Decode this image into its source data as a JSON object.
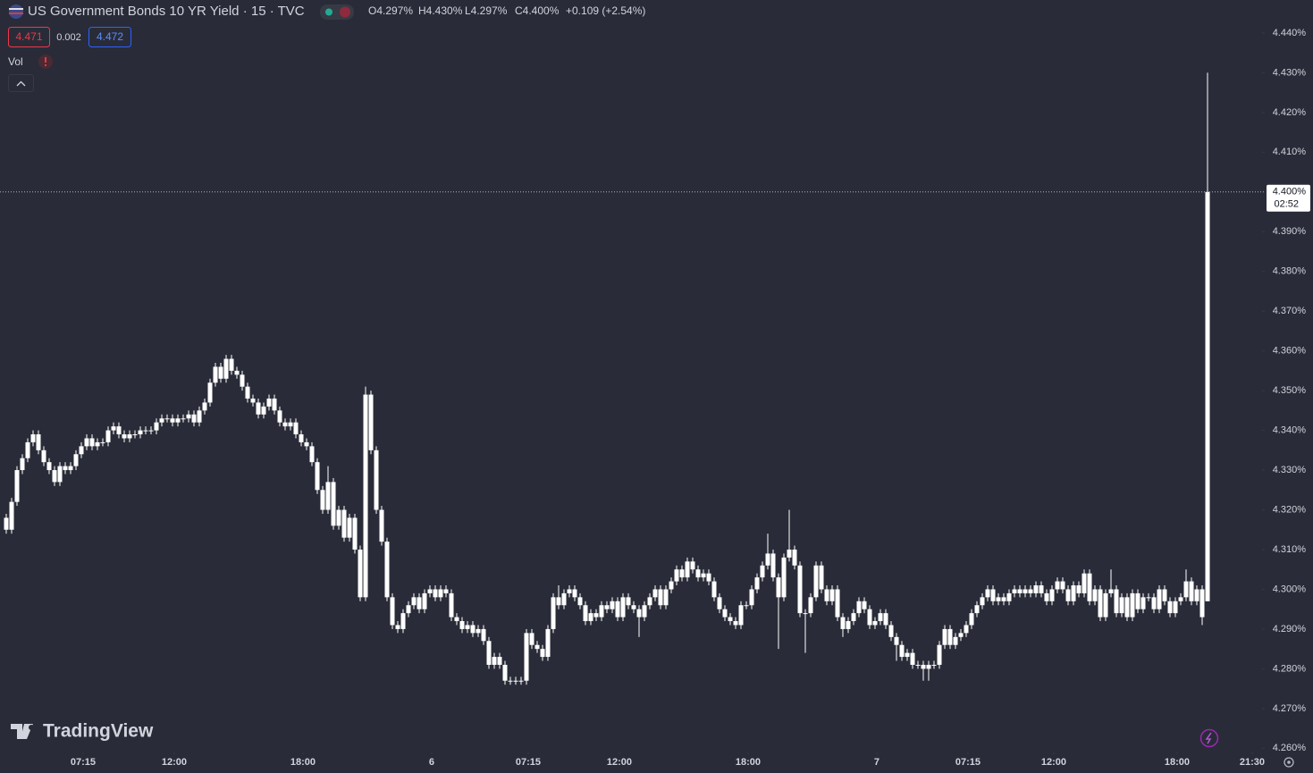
{
  "header": {
    "title": "US Government Bonds 10 YR Yield · 15 · TVC",
    "ohlc": [
      "O4.297%",
      "H4.430%",
      "L4.297%",
      "C4.400%"
    ],
    "change": "+0.109 (+2.54%)",
    "bid": "4.471",
    "spread": "0.002",
    "ask": "4.472",
    "volume_label": "Vol"
  },
  "watermark": "TradingView",
  "chart_data": {
    "type": "candlestick",
    "color": "#ffffff",
    "xlim": [
      -1.167,
      233.833
    ],
    "ylim": [
      4.2594,
      4.4483
    ],
    "xticks": [
      {
        "value": 14.33,
        "label": "07:15"
      },
      {
        "value": 31.33,
        "label": "12:00"
      },
      {
        "value": 55.33,
        "label": "18:00"
      },
      {
        "value": 79.33,
        "label": "6"
      },
      {
        "value": 97.33,
        "label": "07:15"
      },
      {
        "value": 114.33,
        "label": "12:00"
      },
      {
        "value": 138.33,
        "label": "18:00"
      },
      {
        "value": 162.33,
        "label": "7"
      },
      {
        "value": 179.33,
        "label": "07:15"
      },
      {
        "value": 195.33,
        "label": "12:00"
      },
      {
        "value": 218.33,
        "label": "18:00"
      },
      {
        "value": 232.33,
        "label": "21:30"
      }
    ],
    "yticks": [
      {
        "value": 4.44,
        "label": "4.440%"
      },
      {
        "value": 4.43,
        "label": "4.430%"
      },
      {
        "value": 4.42,
        "label": "4.420%"
      },
      {
        "value": 4.41,
        "label": "4.410%"
      },
      {
        "value": 4.39,
        "label": "4.390%"
      },
      {
        "value": 4.38,
        "label": "4.380%"
      },
      {
        "value": 4.37,
        "label": "4.370%"
      },
      {
        "value": 4.36,
        "label": "4.360%"
      },
      {
        "value": 4.35,
        "label": "4.350%"
      },
      {
        "value": 4.34,
        "label": "4.340%"
      },
      {
        "value": 4.33,
        "label": "4.330%"
      },
      {
        "value": 4.32,
        "label": "4.320%"
      },
      {
        "value": 4.31,
        "label": "4.310%"
      },
      {
        "value": 4.3,
        "label": "4.300%"
      },
      {
        "value": 4.29,
        "label": "4.290%"
      },
      {
        "value": 4.28,
        "label": "4.280%"
      },
      {
        "value": 4.27,
        "label": "4.270%"
      },
      {
        "value": 4.26,
        "label": "4.260%"
      }
    ],
    "last_price": {
      "value": 4.4,
      "label": "4.400%"
    },
    "countdown": "02:52",
    "open": [
      4.318,
      4.315,
      4.322,
      4.33,
      4.333,
      4.337,
      4.339,
      4.335,
      4.332,
      4.33,
      4.327,
      4.331,
      4.33,
      4.331,
      4.334,
      4.336,
      4.338,
      4.336,
      4.337,
      4.337,
      4.34,
      4.341,
      4.339,
      4.338,
      4.339,
      4.339,
      4.34,
      4.34,
      4.34,
      4.342,
      4.343,
      4.343,
      4.342,
      4.343,
      4.343,
      4.344,
      4.342,
      4.345,
      4.347,
      4.352,
      4.356,
      4.353,
      4.358,
      4.355,
      4.354,
      4.351,
      4.348,
      4.347,
      4.344,
      4.346,
      4.348,
      4.345,
      4.342,
      4.341,
      4.342,
      4.339,
      4.337,
      4.336,
      4.332,
      4.325,
      4.32,
      4.327,
      4.316,
      4.32,
      4.313,
      4.318,
      4.31,
      4.298,
      4.349,
      4.335,
      4.32,
      4.312,
      4.298,
      4.291,
      4.29,
      4.294,
      4.296,
      4.298,
      4.295,
      4.299,
      4.3,
      4.298,
      4.3,
      4.299,
      4.293,
      4.292,
      4.29,
      4.291,
      4.289,
      4.29,
      4.287,
      4.281,
      4.283,
      4.281,
      4.277,
      4.277,
      4.277,
      4.277,
      4.289,
      4.286,
      4.285,
      4.283,
      4.29,
      4.298,
      4.296,
      4.299,
      4.3,
      4.298,
      4.296,
      4.292,
      4.294,
      4.293,
      4.296,
      4.295,
      4.297,
      4.293,
      4.298,
      4.296,
      4.295,
      4.293,
      4.296,
      4.298,
      4.3,
      4.296,
      4.3,
      4.302,
      4.305,
      4.303,
      4.307,
      4.305,
      4.303,
      4.304,
      4.302,
      4.298,
      4.295,
      4.293,
      4.292,
      4.291,
      4.296,
      4.296,
      4.3,
      4.303,
      4.306,
      4.309,
      4.303,
      4.298,
      4.308,
      4.31,
      4.306,
      4.294,
      4.294,
      4.298,
      4.306,
      4.3,
      4.297,
      4.3,
      4.293,
      4.29,
      4.292,
      4.294,
      4.297,
      4.295,
      4.291,
      4.292,
      4.294,
      4.291,
      4.288,
      4.286,
      4.283,
      4.284,
      4.281,
      4.281,
      4.28,
      4.281,
      4.281,
      4.286,
      4.29,
      4.286,
      4.288,
      4.289,
      4.291,
      4.294,
      4.296,
      4.298,
      4.3,
      4.297,
      4.298,
      4.297,
      4.299,
      4.3,
      4.299,
      4.3,
      4.299,
      4.301,
      4.299,
      4.297,
      4.3,
      4.302,
      4.3,
      4.297,
      4.301,
      4.299,
      4.304,
      4.297,
      4.3,
      4.293,
      4.299,
      4.3,
      4.294,
      4.298,
      4.293,
      4.299,
      4.295,
      4.298,
      4.298,
      4.295,
      4.3,
      4.297,
      4.294,
      4.297,
      4.298,
      4.302,
      4.297,
      4.3,
      4.297
    ],
    "high": [
      4.319,
      4.323,
      4.331,
      4.334,
      4.338,
      4.34,
      4.34,
      4.336,
      4.333,
      4.331,
      4.332,
      4.332,
      4.332,
      4.335,
      4.337,
      4.339,
      4.339,
      4.338,
      4.338,
      4.341,
      4.342,
      4.342,
      4.34,
      4.34,
      4.34,
      4.341,
      4.341,
      4.341,
      4.343,
      4.344,
      4.344,
      4.344,
      4.344,
      4.344,
      4.345,
      4.345,
      4.346,
      4.348,
      4.353,
      4.357,
      4.357,
      4.359,
      4.359,
      4.356,
      4.355,
      4.352,
      4.349,
      4.348,
      4.347,
      4.349,
      4.349,
      4.346,
      4.343,
      4.343,
      4.343,
      4.34,
      4.338,
      4.337,
      4.333,
      4.326,
      4.331,
      4.328,
      4.321,
      4.321,
      4.319,
      4.319,
      4.311,
      4.351,
      4.35,
      4.336,
      4.321,
      4.313,
      4.299,
      4.292,
      4.295,
      4.297,
      4.299,
      4.299,
      4.3,
      4.301,
      4.301,
      4.301,
      4.301,
      4.3,
      4.294,
      4.293,
      4.292,
      4.292,
      4.291,
      4.291,
      4.288,
      4.284,
      4.284,
      4.282,
      4.278,
      4.278,
      4.278,
      4.29,
      4.29,
      4.287,
      4.286,
      4.291,
      4.299,
      4.301,
      4.3,
      4.301,
      4.301,
      4.299,
      4.297,
      4.295,
      4.295,
      4.297,
      4.297,
      4.298,
      4.298,
      4.299,
      4.299,
      4.297,
      4.296,
      4.297,
      4.299,
      4.301,
      4.301,
      4.301,
      4.303,
      4.306,
      4.306,
      4.308,
      4.308,
      4.306,
      4.305,
      4.305,
      4.303,
      4.299,
      4.296,
      4.294,
      4.293,
      4.297,
      4.297,
      4.301,
      4.304,
      4.307,
      4.314,
      4.31,
      4.304,
      4.309,
      4.32,
      4.311,
      4.307,
      4.295,
      4.299,
      4.307,
      4.307,
      4.301,
      4.301,
      4.301,
      4.294,
      4.293,
      4.295,
      4.298,
      4.298,
      4.296,
      4.293,
      4.295,
      4.295,
      4.292,
      4.289,
      4.287,
      4.285,
      4.285,
      4.282,
      4.282,
      4.282,
      4.282,
      4.287,
      4.291,
      4.291,
      4.289,
      4.29,
      4.292,
      4.295,
      4.297,
      4.299,
      4.301,
      4.301,
      4.299,
      4.299,
      4.3,
      4.301,
      4.301,
      4.301,
      4.301,
      4.302,
      4.302,
      4.3,
      4.301,
      4.303,
      4.303,
      4.301,
      4.302,
      4.302,
      4.305,
      4.305,
      4.301,
      4.301,
      4.3,
      4.305,
      4.301,
      4.299,
      4.299,
      4.3,
      4.3,
      4.299,
      4.299,
      4.299,
      4.301,
      4.301,
      4.298,
      4.298,
      4.299,
      4.305,
      4.303,
      4.301,
      4.301,
      4.43
    ],
    "low": [
      4.314,
      4.314,
      4.321,
      4.329,
      4.332,
      4.336,
      4.334,
      4.331,
      4.329,
      4.326,
      4.326,
      4.329,
      4.329,
      4.33,
      4.333,
      4.335,
      4.335,
      4.335,
      4.336,
      4.336,
      4.339,
      4.338,
      4.337,
      4.337,
      4.338,
      4.338,
      4.339,
      4.339,
      4.339,
      4.341,
      4.342,
      4.341,
      4.341,
      4.342,
      4.342,
      4.341,
      4.341,
      4.344,
      4.346,
      4.351,
      4.352,
      4.352,
      4.354,
      4.353,
      4.35,
      4.347,
      4.346,
      4.343,
      4.343,
      4.345,
      4.344,
      4.341,
      4.34,
      4.34,
      4.338,
      4.336,
      4.335,
      4.331,
      4.324,
      4.319,
      4.319,
      4.315,
      4.315,
      4.312,
      4.312,
      4.309,
      4.297,
      4.297,
      4.334,
      4.319,
      4.311,
      4.297,
      4.29,
      4.289,
      4.289,
      4.293,
      4.295,
      4.294,
      4.294,
      4.298,
      4.297,
      4.297,
      4.298,
      4.292,
      4.291,
      4.289,
      4.289,
      4.288,
      4.288,
      4.286,
      4.28,
      4.28,
      4.28,
      4.276,
      4.276,
      4.276,
      4.276,
      4.276,
      4.285,
      4.284,
      4.282,
      4.282,
      4.289,
      4.295,
      4.295,
      4.298,
      4.297,
      4.295,
      4.291,
      4.291,
      4.292,
      4.292,
      4.294,
      4.294,
      4.292,
      4.292,
      4.295,
      4.294,
      4.288,
      4.292,
      4.295,
      4.297,
      4.295,
      4.295,
      4.299,
      4.301,
      4.302,
      4.302,
      4.304,
      4.302,
      4.302,
      4.301,
      4.297,
      4.294,
      4.292,
      4.291,
      4.29,
      4.29,
      4.295,
      4.295,
      4.299,
      4.302,
      4.305,
      4.302,
      4.285,
      4.297,
      4.307,
      4.305,
      4.293,
      4.284,
      4.293,
      4.297,
      4.299,
      4.296,
      4.296,
      4.292,
      4.288,
      4.289,
      4.291,
      4.293,
      4.294,
      4.29,
      4.29,
      4.291,
      4.29,
      4.287,
      4.282,
      4.282,
      4.282,
      4.28,
      4.28,
      4.277,
      4.277,
      4.28,
      4.28,
      4.285,
      4.285,
      4.285,
      4.287,
      4.288,
      4.29,
      4.293,
      4.295,
      4.297,
      4.296,
      4.296,
      4.296,
      4.296,
      4.298,
      4.298,
      4.298,
      4.298,
      4.298,
      4.298,
      4.296,
      4.296,
      4.299,
      4.299,
      4.296,
      4.296,
      4.298,
      4.298,
      4.296,
      4.296,
      4.292,
      4.292,
      4.298,
      4.293,
      4.293,
      4.292,
      4.292,
      4.294,
      4.294,
      4.297,
      4.294,
      4.294,
      4.296,
      4.293,
      4.293,
      4.296,
      4.297,
      4.296,
      4.296,
      4.291,
      4.297
    ],
    "close": [
      4.315,
      4.322,
      4.33,
      4.333,
      4.337,
      4.339,
      4.335,
      4.332,
      4.33,
      4.327,
      4.331,
      4.33,
      4.331,
      4.334,
      4.336,
      4.338,
      4.336,
      4.337,
      4.337,
      4.34,
      4.341,
      4.339,
      4.338,
      4.339,
      4.339,
      4.34,
      4.34,
      4.34,
      4.342,
      4.343,
      4.343,
      4.342,
      4.343,
      4.343,
      4.344,
      4.342,
      4.345,
      4.347,
      4.352,
      4.356,
      4.353,
      4.358,
      4.355,
      4.354,
      4.351,
      4.348,
      4.347,
      4.344,
      4.346,
      4.348,
      4.345,
      4.342,
      4.341,
      4.342,
      4.339,
      4.337,
      4.336,
      4.332,
      4.325,
      4.32,
      4.327,
      4.316,
      4.32,
      4.313,
      4.318,
      4.31,
      4.298,
      4.349,
      4.335,
      4.32,
      4.312,
      4.298,
      4.291,
      4.29,
      4.294,
      4.296,
      4.298,
      4.295,
      4.299,
      4.3,
      4.298,
      4.3,
      4.299,
      4.293,
      4.292,
      4.29,
      4.291,
      4.289,
      4.29,
      4.287,
      4.281,
      4.283,
      4.281,
      4.277,
      4.277,
      4.277,
      4.277,
      4.289,
      4.286,
      4.285,
      4.283,
      4.29,
      4.298,
      4.296,
      4.299,
      4.3,
      4.298,
      4.296,
      4.292,
      4.294,
      4.293,
      4.296,
      4.295,
      4.297,
      4.293,
      4.298,
      4.296,
      4.295,
      4.293,
      4.296,
      4.298,
      4.3,
      4.296,
      4.3,
      4.302,
      4.305,
      4.303,
      4.307,
      4.305,
      4.303,
      4.304,
      4.302,
      4.298,
      4.295,
      4.293,
      4.292,
      4.291,
      4.296,
      4.296,
      4.3,
      4.303,
      4.306,
      4.309,
      4.303,
      4.298,
      4.308,
      4.31,
      4.306,
      4.294,
      4.294,
      4.298,
      4.306,
      4.3,
      4.297,
      4.3,
      4.293,
      4.29,
      4.292,
      4.294,
      4.297,
      4.295,
      4.291,
      4.292,
      4.294,
      4.291,
      4.288,
      4.286,
      4.283,
      4.284,
      4.281,
      4.281,
      4.28,
      4.281,
      4.281,
      4.286,
      4.29,
      4.286,
      4.288,
      4.289,
      4.291,
      4.294,
      4.296,
      4.298,
      4.3,
      4.297,
      4.298,
      4.297,
      4.299,
      4.3,
      4.299,
      4.3,
      4.299,
      4.301,
      4.299,
      4.297,
      4.3,
      4.302,
      4.3,
      4.297,
      4.301,
      4.299,
      4.304,
      4.297,
      4.3,
      4.293,
      4.299,
      4.3,
      4.294,
      4.298,
      4.293,
      4.299,
      4.295,
      4.298,
      4.298,
      4.295,
      4.3,
      4.297,
      4.294,
      4.297,
      4.298,
      4.302,
      4.297,
      4.3,
      4.293,
      4.4
    ]
  }
}
